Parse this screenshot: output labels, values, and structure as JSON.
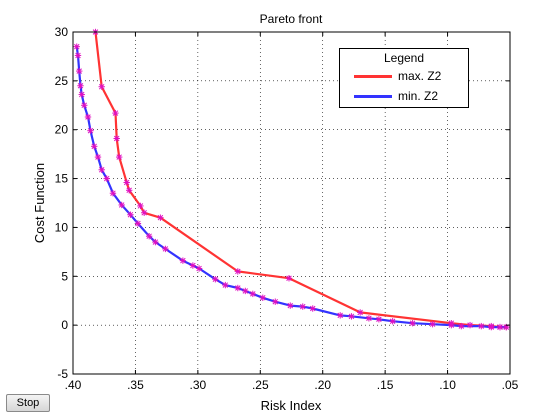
{
  "window": {
    "stop_label": "Stop"
  },
  "chart_data": {
    "type": "line",
    "title": "Pareto front",
    "xlabel": "Risk Index",
    "ylabel": "Cost Function",
    "xlim": [
      0.4,
      0.05
    ],
    "x_reversed": true,
    "ylim": [
      -5,
      30
    ],
    "xticks": [
      ".40",
      ".35",
      ".30",
      ".25",
      ".20",
      ".15",
      ".10",
      ".05"
    ],
    "yticks": [
      "-5",
      "0",
      "5",
      "10",
      "15",
      "20",
      "25",
      "30"
    ],
    "grid": true,
    "grid_style": "dotted",
    "marker": "star",
    "marker_color": "#e010c0",
    "legend": {
      "title": "Legend",
      "placement": "top-right",
      "entries": [
        "max. Z2",
        "min. Z2"
      ]
    },
    "series": [
      {
        "name": "max. Z2",
        "color": "#ff3333",
        "x": [
          0.382,
          0.377,
          0.366,
          0.365,
          0.363,
          0.357,
          0.355,
          0.346,
          0.343,
          0.33,
          0.268,
          0.227,
          0.17,
          0.097,
          0.082,
          0.065,
          0.058,
          0.053
        ],
        "y": [
          30.0,
          24.4,
          21.7,
          19.1,
          17.2,
          14.6,
          13.8,
          12.2,
          11.5,
          11.0,
          5.5,
          4.8,
          1.3,
          0.2,
          0.0,
          -0.1,
          -0.2,
          -0.2
        ]
      },
      {
        "name": "min. Z2",
        "color": "#3333ff",
        "x": [
          0.397,
          0.396,
          0.395,
          0.394,
          0.393,
          0.391,
          0.388,
          0.386,
          0.383,
          0.38,
          0.377,
          0.373,
          0.368,
          0.361,
          0.354,
          0.348,
          0.339,
          0.334,
          0.326,
          0.312,
          0.304,
          0.299,
          0.286,
          0.278,
          0.268,
          0.262,
          0.256,
          0.248,
          0.238,
          0.226,
          0.216,
          0.208,
          0.186,
          0.177,
          0.163,
          0.155,
          0.144,
          0.128,
          0.112,
          0.097,
          0.089,
          0.073,
          0.065,
          0.058,
          0.053
        ],
        "y": [
          28.5,
          27.6,
          26.0,
          24.5,
          23.6,
          22.5,
          21.3,
          19.9,
          18.3,
          17.2,
          15.9,
          15.0,
          13.5,
          12.3,
          11.3,
          10.4,
          9.1,
          8.5,
          7.8,
          6.6,
          6.1,
          5.8,
          4.7,
          4.1,
          3.8,
          3.5,
          3.2,
          2.8,
          2.4,
          2.0,
          1.9,
          1.7,
          1.0,
          0.9,
          0.7,
          0.6,
          0.4,
          0.2,
          0.1,
          0.0,
          -0.1,
          -0.1,
          -0.2,
          -0.2,
          -0.2
        ]
      }
    ]
  }
}
